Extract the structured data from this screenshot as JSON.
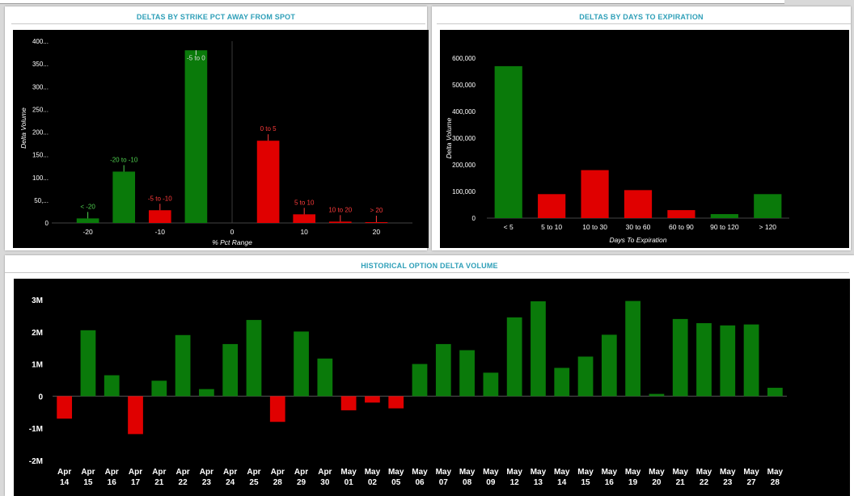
{
  "panels": {
    "strike": {
      "title": "DELTAS BY STRIKE PCT AWAY FROM SPOT"
    },
    "days": {
      "title": "DELTAS BY DAYS TO EXPIRATION"
    },
    "history": {
      "title": "HISTORICAL OPTION DELTA VOLUME"
    }
  },
  "colors": {
    "positive": "#0a7a0a",
    "negative": "#e00000",
    "plot_bg": "#000000",
    "title": "#2e9fb8"
  },
  "chart_data": [
    {
      "type": "bar",
      "title": "DELTAS BY STRIKE PCT AWAY FROM SPOT",
      "xlabel": "% Pct Range",
      "ylabel": "Delta Volume",
      "ylim": [
        0,
        400
      ],
      "xlim": [
        -25,
        25
      ],
      "yticks": [
        {
          "v": 0,
          "label": "0"
        },
        {
          "v": 50,
          "label": "50,..."
        },
        {
          "v": 100,
          "label": "100..."
        },
        {
          "v": 150,
          "label": "150..."
        },
        {
          "v": 200,
          "label": "200..."
        },
        {
          "v": 250,
          "label": "250..."
        },
        {
          "v": 300,
          "label": "300..."
        },
        {
          "v": 350,
          "label": "350..."
        },
        {
          "v": 400,
          "label": "400..."
        }
      ],
      "xticks": [
        {
          "v": -20,
          "label": "-20"
        },
        {
          "v": -10,
          "label": "-10"
        },
        {
          "v": 0,
          "label": "0"
        },
        {
          "v": 10,
          "label": "10"
        },
        {
          "v": 20,
          "label": "20"
        }
      ],
      "bars": [
        {
          "label": "< -20",
          "x": -20,
          "value": 10,
          "sign": "positive"
        },
        {
          "label": "-20 to -10",
          "x": -15,
          "value": 113,
          "sign": "positive"
        },
        {
          "label": "-5 to -10",
          "x": -10,
          "value": 28,
          "sign": "negative"
        },
        {
          "label": "-5 to 0",
          "x": -5,
          "value": 380,
          "sign": "positive"
        },
        {
          "label": "0 to 5",
          "x": 5,
          "value": 181,
          "sign": "negative"
        },
        {
          "label": "5 to 10",
          "x": 10,
          "value": 19,
          "sign": "negative"
        },
        {
          "label": "10 to 20",
          "x": 15,
          "value": 3,
          "sign": "negative"
        },
        {
          "label": "> 20",
          "x": 20,
          "value": 1,
          "sign": "negative"
        }
      ]
    },
    {
      "type": "bar",
      "title": "DELTAS BY DAYS TO EXPIRATION",
      "xlabel": "Days To Expiration",
      "ylabel": "Delta Volume",
      "ylim": [
        0,
        600000
      ],
      "yticks": [
        {
          "v": 0,
          "label": "0"
        },
        {
          "v": 100000,
          "label": "100,000"
        },
        {
          "v": 200000,
          "label": "200,000"
        },
        {
          "v": 300000,
          "label": "300,000"
        },
        {
          "v": 400000,
          "label": "400,000"
        },
        {
          "v": 500000,
          "label": "500,000"
        },
        {
          "v": 600000,
          "label": "600,000"
        }
      ],
      "categories": [
        "< 5",
        "5 to 10",
        "10 to 30",
        "30 to 60",
        "60 to 90",
        "90 to 120",
        "> 120"
      ],
      "values": [
        570000,
        90000,
        180000,
        105000,
        30000,
        15000,
        90000
      ],
      "signs": [
        "positive",
        "negative",
        "negative",
        "negative",
        "negative",
        "positive",
        "positive"
      ]
    },
    {
      "type": "bar",
      "title": "HISTORICAL OPTION DELTA VOLUME",
      "ylim": [
        -2000000,
        3000000
      ],
      "yticks": [
        {
          "v": -2000000,
          "label": "-2M"
        },
        {
          "v": -1000000,
          "label": "-1M"
        },
        {
          "v": 0,
          "label": "0"
        },
        {
          "v": 1000000,
          "label": "1M"
        },
        {
          "v": 2000000,
          "label": "2M"
        },
        {
          "v": 3000000,
          "label": "3M"
        }
      ],
      "categories": [
        [
          "Apr",
          "14"
        ],
        [
          "Apr",
          "15"
        ],
        [
          "Apr",
          "16"
        ],
        [
          "Apr",
          "17"
        ],
        [
          "Apr",
          "21"
        ],
        [
          "Apr",
          "22"
        ],
        [
          "Apr",
          "23"
        ],
        [
          "Apr",
          "24"
        ],
        [
          "Apr",
          "25"
        ],
        [
          "Apr",
          "28"
        ],
        [
          "Apr",
          "29"
        ],
        [
          "Apr",
          "30"
        ],
        [
          "May",
          "01"
        ],
        [
          "May",
          "02"
        ],
        [
          "May",
          "05"
        ],
        [
          "May",
          "06"
        ],
        [
          "May",
          "07"
        ],
        [
          "May",
          "08"
        ],
        [
          "May",
          "09"
        ],
        [
          "May",
          "12"
        ],
        [
          "May",
          "13"
        ],
        [
          "May",
          "14"
        ],
        [
          "May",
          "15"
        ],
        [
          "May",
          "16"
        ],
        [
          "May",
          "19"
        ],
        [
          "May",
          "20"
        ],
        [
          "May",
          "21"
        ],
        [
          "May",
          "22"
        ],
        [
          "May",
          "23"
        ],
        [
          "May",
          "27"
        ],
        [
          "May",
          "28"
        ]
      ],
      "values": [
        -700000,
        2050000,
        650000,
        -1180000,
        480000,
        1900000,
        220000,
        1620000,
        2370000,
        -800000,
        2010000,
        1170000,
        -440000,
        -200000,
        -380000,
        1000000,
        1620000,
        1430000,
        730000,
        2450000,
        2950000,
        880000,
        1230000,
        1910000,
        2960000,
        70000,
        2400000,
        2270000,
        2200000,
        2230000,
        260000
      ]
    }
  ]
}
